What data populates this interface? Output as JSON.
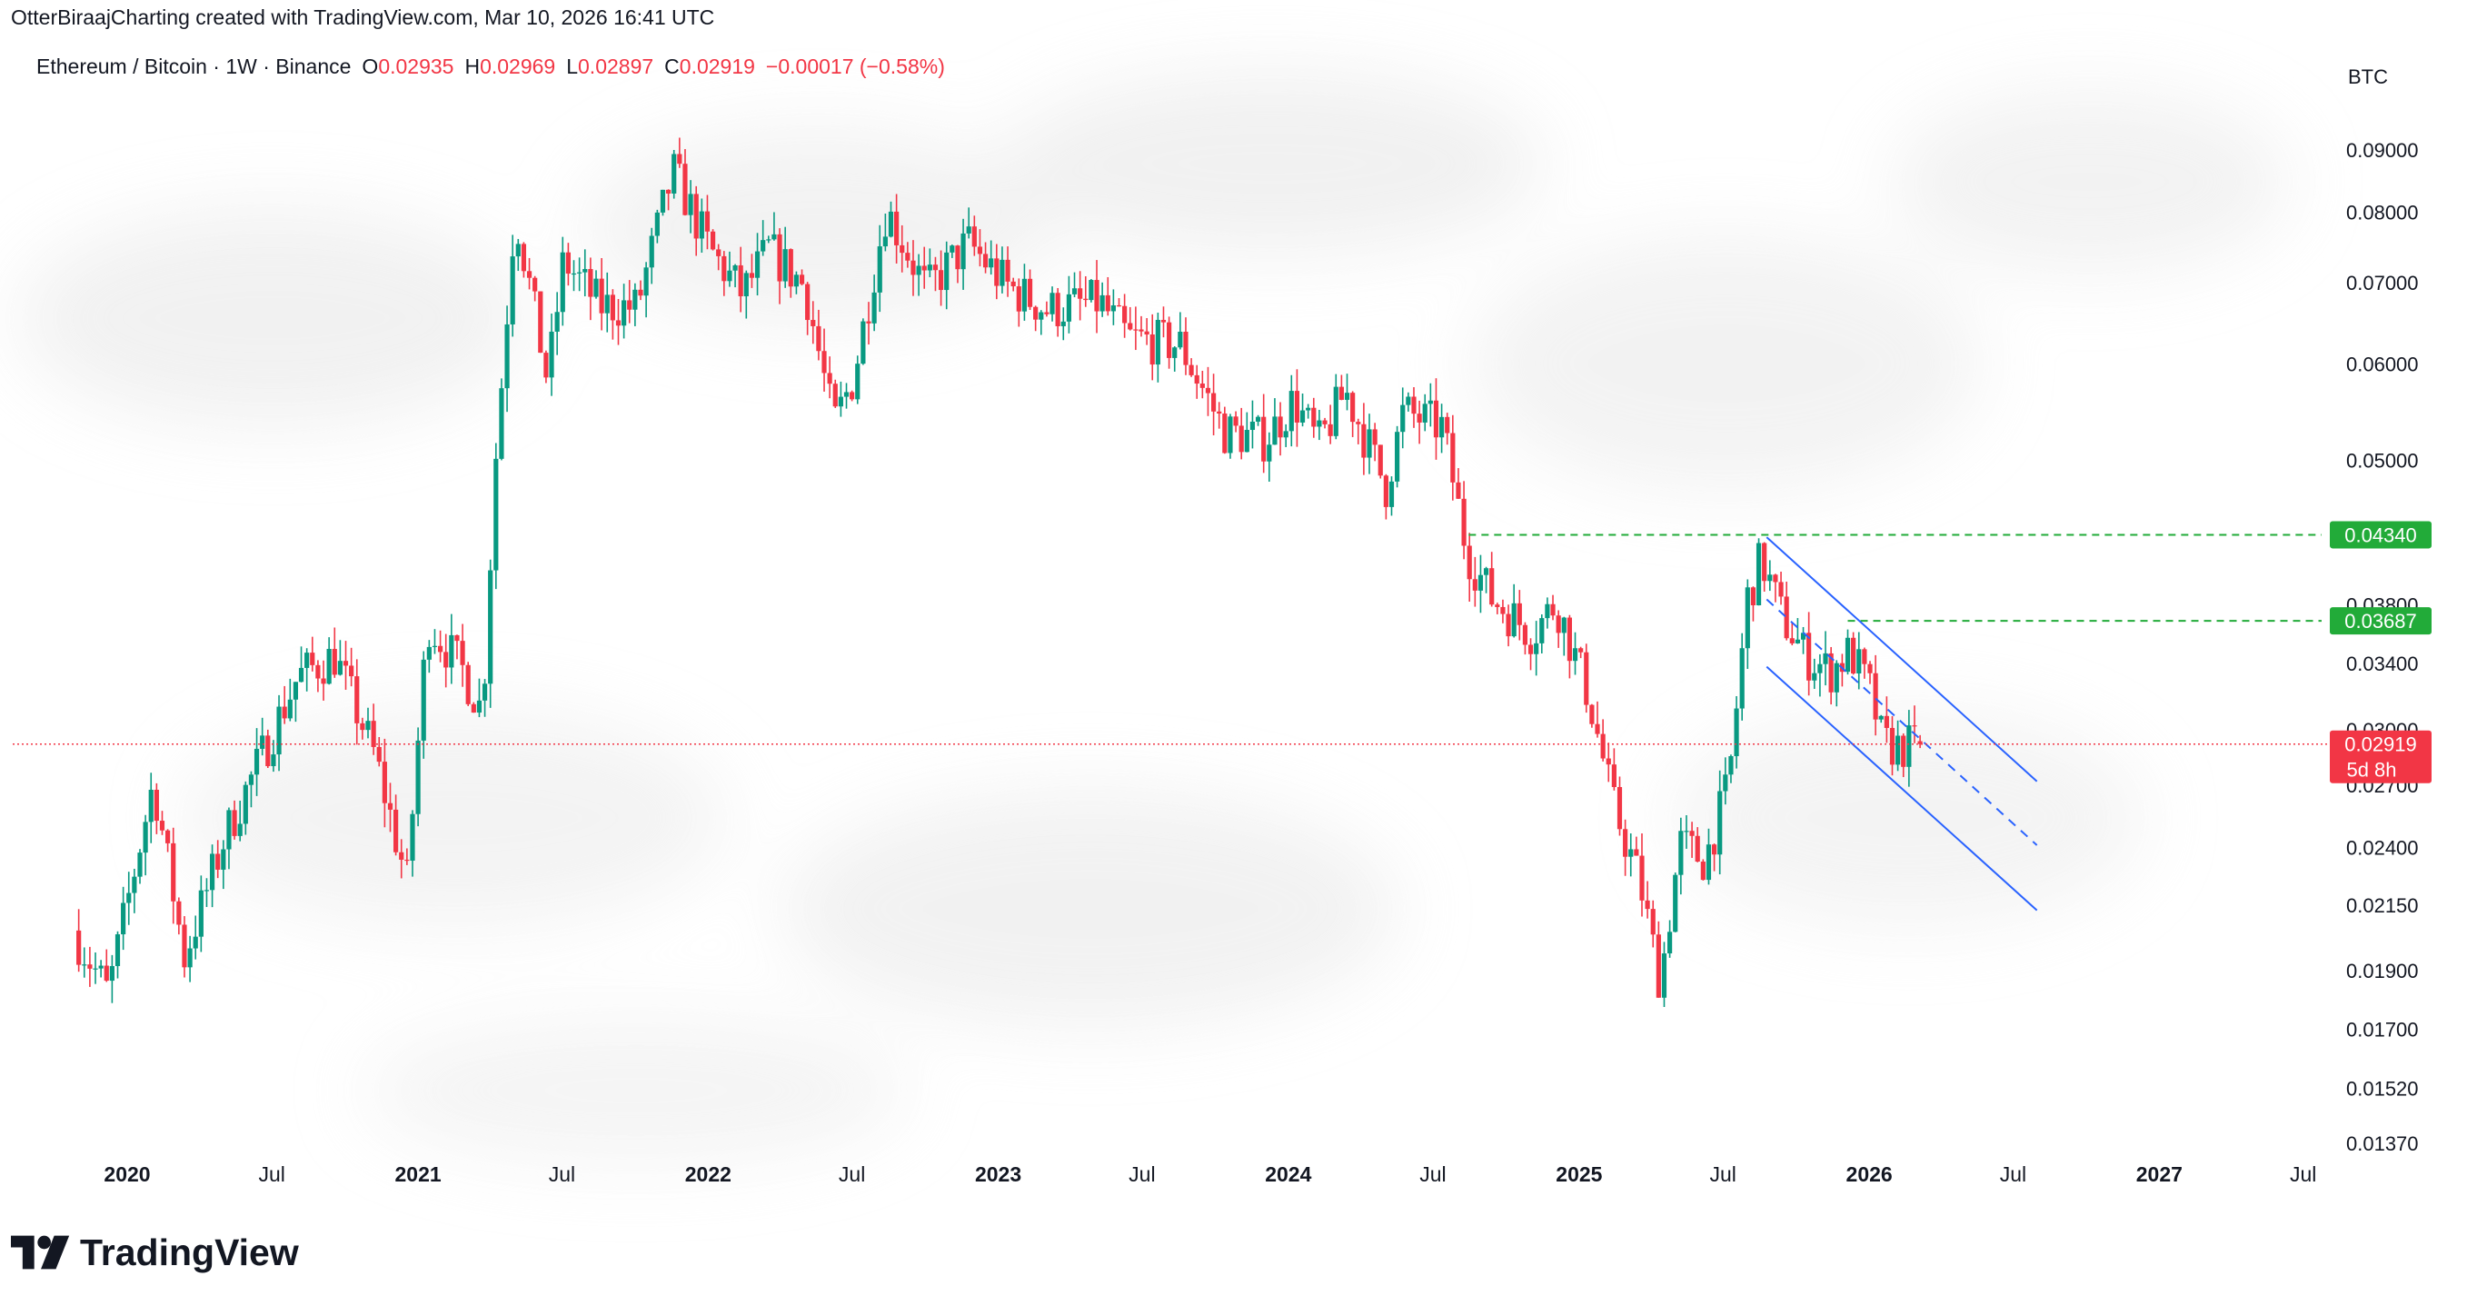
{
  "caption": "OtterBiraajCharting created with TradingView.com, Mar 10, 2026 16:41 UTC",
  "legend": {
    "symbol": "Ethereum / Bitcoin · 1W · Binance",
    "o_label": "O",
    "o_value": "0.02935",
    "h_label": "H",
    "h_value": "0.02969",
    "l_label": "L",
    "l_value": "0.02897",
    "c_label": "C",
    "c_value": "0.02919",
    "change": "−0.00017 (−0.58%)"
  },
  "currency": "BTC",
  "brand": "TradingView",
  "colors": {
    "up": "#089981",
    "down": "#f23645",
    "channel": "#2962ff",
    "resistance": "#22ab39",
    "price_line": "#f23645",
    "text": "#131722"
  },
  "chart_data": {
    "type": "candlestick",
    "scale": "log",
    "y_ticks": [
      "0.09000",
      "0.08000",
      "0.07000",
      "0.06000",
      "0.05000",
      "0.03800",
      "0.03400",
      "0.03000",
      "0.02700",
      "0.02400",
      "0.02150",
      "0.01900",
      "0.01700",
      "0.01520",
      "0.01370"
    ],
    "x_ticks": [
      {
        "label": "2020",
        "bold": true
      },
      {
        "label": "Jul",
        "bold": false
      },
      {
        "label": "2021",
        "bold": true
      },
      {
        "label": "Jul",
        "bold": false
      },
      {
        "label": "2022",
        "bold": true
      },
      {
        "label": "Jul",
        "bold": false
      },
      {
        "label": "2023",
        "bold": true
      },
      {
        "label": "Jul",
        "bold": false
      },
      {
        "label": "2024",
        "bold": true
      },
      {
        "label": "Jul",
        "bold": false
      },
      {
        "label": "2025",
        "bold": true
      },
      {
        "label": "Jul",
        "bold": false
      },
      {
        "label": "2026",
        "bold": true
      },
      {
        "label": "Jul",
        "bold": false
      },
      {
        "label": "2027",
        "bold": true
      },
      {
        "label": "Jul",
        "bold": false
      }
    ],
    "price_anchors": [
      [
        "2019-11-01",
        0.0205
      ],
      [
        "2019-12-15",
        0.0182
      ],
      [
        "2020-02-10",
        0.0272
      ],
      [
        "2020-03-20",
        0.0195
      ],
      [
        "2020-05-10",
        0.0245
      ],
      [
        "2020-08-10",
        0.0332
      ],
      [
        "2020-09-25",
        0.0345
      ],
      [
        "2020-11-15",
        0.0285
      ],
      [
        "2020-12-25",
        0.0225
      ],
      [
        "2021-01-20",
        0.0368
      ],
      [
        "2021-03-05",
        0.0336
      ],
      [
        "2021-03-30",
        0.031
      ],
      [
        "2021-04-15",
        0.0495
      ],
      [
        "2021-05-10",
        0.0805
      ],
      [
        "2021-06-20",
        0.058
      ],
      [
        "2021-07-10",
        0.073
      ],
      [
        "2021-08-25",
        0.067
      ],
      [
        "2021-10-10",
        0.0668
      ],
      [
        "2021-11-25",
        0.0865
      ],
      [
        "2022-01-10",
        0.0745
      ],
      [
        "2022-02-20",
        0.0685
      ],
      [
        "2022-03-25",
        0.0745
      ],
      [
        "2022-05-10",
        0.0695
      ],
      [
        "2022-06-15",
        0.0535
      ],
      [
        "2022-07-10",
        0.0585
      ],
      [
        "2022-08-20",
        0.0805
      ],
      [
        "2022-10-10",
        0.069
      ],
      [
        "2022-12-01",
        0.0755
      ],
      [
        "2023-01-20",
        0.0695
      ],
      [
        "2023-03-10",
        0.0665
      ],
      [
        "2023-05-15",
        0.0675
      ],
      [
        "2023-06-20",
        0.063
      ],
      [
        "2023-08-25",
        0.0622
      ],
      [
        "2023-10-20",
        0.0528
      ],
      [
        "2023-12-10",
        0.052
      ],
      [
        "2024-01-15",
        0.056
      ],
      [
        "2024-02-15",
        0.0515
      ],
      [
        "2024-03-20",
        0.057
      ],
      [
        "2024-05-10",
        0.0475
      ],
      [
        "2024-06-01",
        0.0548
      ],
      [
        "2024-07-20",
        0.0532
      ],
      [
        "2024-08-20",
        0.042
      ],
      [
        "2024-09-20",
        0.0385
      ],
      [
        "2024-11-10",
        0.036
      ],
      [
        "2024-12-10",
        0.0382
      ],
      [
        "2025-01-20",
        0.032
      ],
      [
        "2025-02-20",
        0.026
      ],
      [
        "2025-03-25",
        0.0225
      ],
      [
        "2025-04-20",
        0.0186
      ],
      [
        "2025-05-15",
        0.0242
      ],
      [
        "2025-06-15",
        0.0234
      ],
      [
        "2025-07-15",
        0.027
      ],
      [
        "2025-08-08",
        0.0385
      ],
      [
        "2025-08-25",
        0.0415
      ],
      [
        "2025-09-20",
        0.0372
      ],
      [
        "2025-10-20",
        0.0345
      ],
      [
        "2025-11-20",
        0.0335
      ],
      [
        "2025-12-15",
        0.0348
      ],
      [
        "2026-01-10",
        0.0322
      ],
      [
        "2026-01-25",
        0.0292
      ],
      [
        "2026-02-15",
        0.029
      ],
      [
        "2026-03-10",
        0.02919
      ]
    ],
    "last_candle": {
      "open": 0.02935,
      "high": 0.02969,
      "low": 0.02897,
      "close": 0.02919
    },
    "levels": [
      {
        "price": 0.0434,
        "label": "0.04340",
        "from": "2024-08-15"
      },
      {
        "price": 0.03687,
        "label": "0.03687",
        "from": "2025-12-05"
      }
    ],
    "current_price": {
      "label": "0.02919",
      "countdown": "5d 8h"
    },
    "channel": {
      "upper": [
        [
          "2025-08-25",
          0.0432
        ],
        [
          "2026-07-31",
          0.0272
        ]
      ],
      "lower": [
        [
          "2025-08-25",
          0.0338
        ],
        [
          "2026-07-31",
          0.0213
        ]
      ],
      "middle_dashed": [
        [
          "2025-08-25",
          0.0384
        ],
        [
          "2026-07-31",
          0.0241
        ]
      ]
    }
  }
}
